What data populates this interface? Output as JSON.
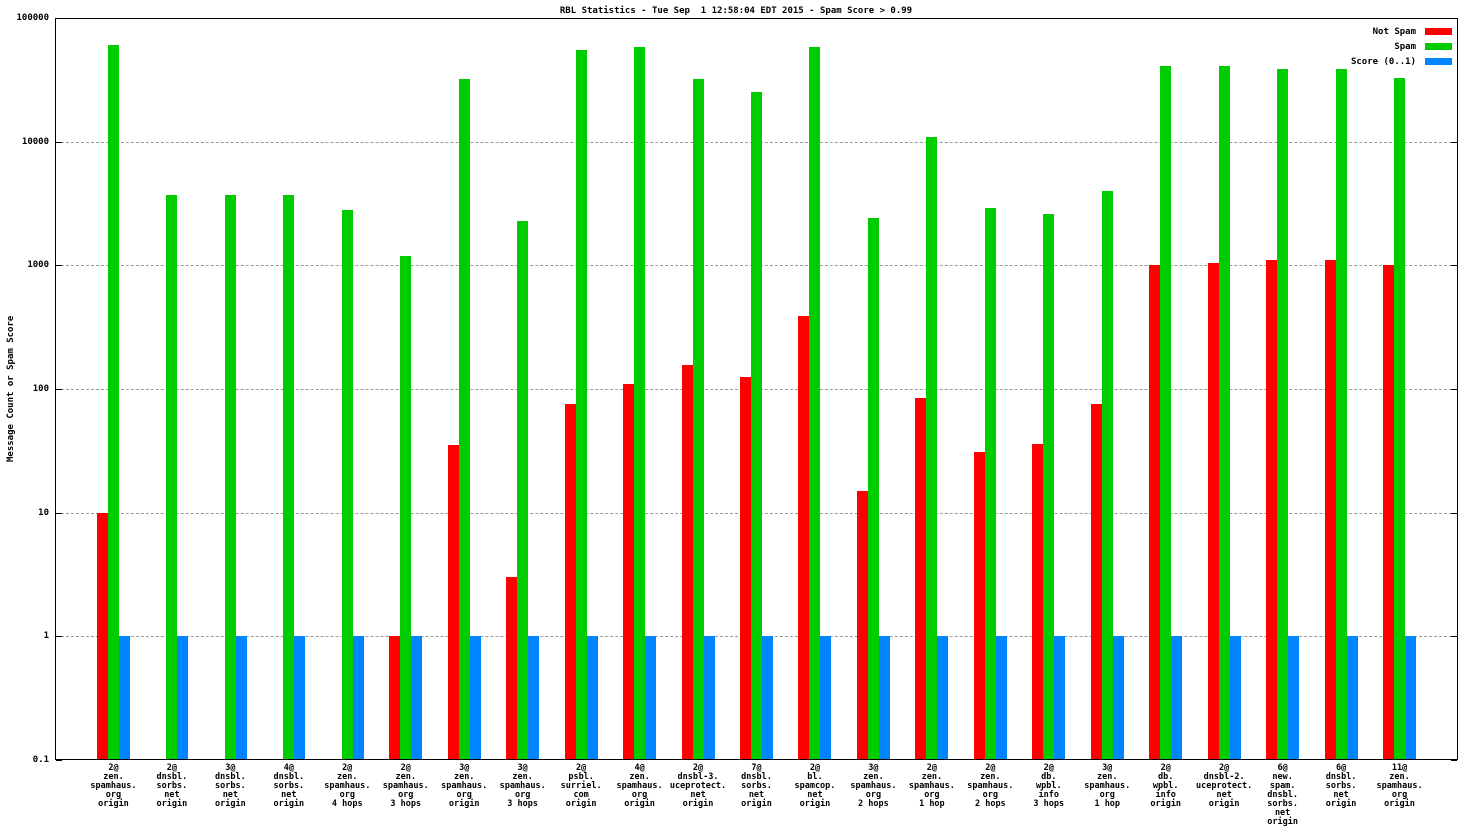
{
  "title": "RBL Statistics - Tue Sep  1 12:58:04 EDT 2015 - Spam Score > 0.99",
  "chart_data": {
    "type": "bar",
    "title": "RBL Statistics - Tue Sep  1 12:58:04 EDT 2015 - Spam Score > 0.99",
    "xlabel": "",
    "ylabel": "Message Count or Spam Score",
    "yscale": "log",
    "ylim": [
      0.1,
      100000
    ],
    "ytick_labels": [
      "0.1",
      "1",
      "10",
      "100",
      "1000",
      "10000",
      "100000"
    ],
    "ytick_values": [
      0.1,
      1,
      10,
      100,
      1000,
      10000,
      100000
    ],
    "grid": true,
    "legend_position": "top-right-inside",
    "categories": [
      [
        "2@",
        "zen.",
        "spamhaus.",
        "org",
        "origin"
      ],
      [
        "2@",
        "dnsbl.",
        "sorbs.",
        "net",
        "origin"
      ],
      [
        "3@",
        "dnsbl.",
        "sorbs.",
        "net",
        "origin"
      ],
      [
        "4@",
        "dnsbl.",
        "sorbs.",
        "net",
        "origin"
      ],
      [
        "2@",
        "zen.",
        "spamhaus.",
        "org",
        "4 hops"
      ],
      [
        "2@",
        "zen.",
        "spamhaus.",
        "org",
        "3 hops"
      ],
      [
        "3@",
        "zen.",
        "spamhaus.",
        "org",
        "origin"
      ],
      [
        "3@",
        "zen.",
        "spamhaus.",
        "org",
        "3 hops"
      ],
      [
        "2@",
        "psbl.",
        "surriel.",
        "com",
        "origin"
      ],
      [
        "4@",
        "zen.",
        "spamhaus.",
        "org",
        "origin"
      ],
      [
        "2@",
        "dnsbl-3.",
        "uceprotect.",
        "net",
        "origin"
      ],
      [
        "7@",
        "dnsbl.",
        "sorbs.",
        "net",
        "origin"
      ],
      [
        "2@",
        "bl.",
        "spamcop.",
        "net",
        "origin"
      ],
      [
        "3@",
        "zen.",
        "spamhaus.",
        "org",
        "2 hops"
      ],
      [
        "2@",
        "zen.",
        "spamhaus.",
        "org",
        "1 hop"
      ],
      [
        "2@",
        "zen.",
        "spamhaus.",
        "org",
        "2 hops"
      ],
      [
        "2@",
        "db.",
        "wpbl.",
        "info",
        "3 hops"
      ],
      [
        "3@",
        "zen.",
        "spamhaus.",
        "org",
        "1 hop"
      ],
      [
        "2@",
        "db.",
        "wpbl.",
        "info",
        "origin"
      ],
      [
        "2@",
        "dnsbl-2.",
        "uceprotect.",
        "net",
        "origin"
      ],
      [
        "6@",
        "new.",
        "spam.",
        "dnsbl.",
        "sorbs.",
        "net",
        "origin"
      ],
      [
        "6@",
        "dnsbl.",
        "sorbs.",
        "net",
        "origin"
      ],
      [
        "11@",
        "zen.",
        "spamhaus.",
        "org",
        "origin"
      ]
    ],
    "series": [
      {
        "name": "Not Spam",
        "color": "#ff0000",
        "values": [
          10,
          null,
          null,
          null,
          null,
          1,
          35,
          3,
          75,
          110,
          155,
          125,
          390,
          15,
          85,
          31,
          36,
          75,
          1000,
          1050,
          1100,
          1100,
          1000
        ]
      },
      {
        "name": "Spam",
        "color": "#00cc00",
        "values": [
          60000,
          3700,
          3700,
          3700,
          2800,
          1200,
          32000,
          2300,
          55000,
          58000,
          32000,
          25000,
          58000,
          2400,
          11000,
          2900,
          2600,
          4000,
          41000,
          41000,
          39000,
          39000,
          33000
        ]
      },
      {
        "name": "Score (0..1)",
        "color": "#0084ff",
        "values": [
          1,
          1,
          1,
          1,
          1,
          1,
          1,
          1,
          1,
          1,
          1,
          1,
          1,
          1,
          1,
          1,
          1,
          1,
          1,
          1,
          1,
          1,
          1
        ]
      }
    ]
  }
}
